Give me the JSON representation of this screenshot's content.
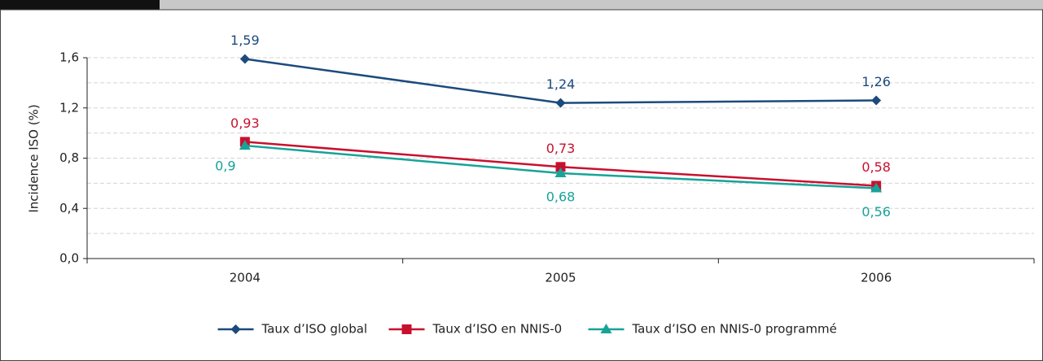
{
  "chart_data": {
    "type": "line",
    "y_label": "Incidence ISO  (%)",
    "categories": [
      "2004",
      "2005",
      "2006"
    ],
    "series": [
      {
        "name": "Taux d’ISO global",
        "color": "#1c4a7c",
        "marker": "diamond",
        "values": [
          1.59,
          1.24,
          1.26
        ],
        "value_labels": [
          "1,59",
          "1,24",
          "1,26"
        ]
      },
      {
        "name": "Taux d’ISO en NNIS-0",
        "color": "#c8102e",
        "marker": "square",
        "values": [
          0.93,
          0.73,
          0.58
        ],
        "value_labels": [
          "0,93",
          "0,73",
          "0,58"
        ]
      },
      {
        "name": "Taux d’ISO en NNIS-0 programmé",
        "color": "#17a398",
        "marker": "triangle",
        "values": [
          0.9,
          0.68,
          0.56
        ],
        "value_labels": [
          "0,9",
          "0,68",
          "0,56"
        ]
      }
    ],
    "ylim": [
      0,
      1.6
    ],
    "yticks": [
      {
        "value": 0,
        "label": "0,0"
      },
      {
        "value": 0.4,
        "label": "0,4"
      },
      {
        "value": 0.8,
        "label": "0,8"
      },
      {
        "value": 1.2,
        "label": "1,2"
      },
      {
        "value": 1.6,
        "label": "1,6"
      }
    ],
    "minor_yticks": [
      0.2,
      0.6,
      1,
      1.4
    ],
    "grid": true
  }
}
